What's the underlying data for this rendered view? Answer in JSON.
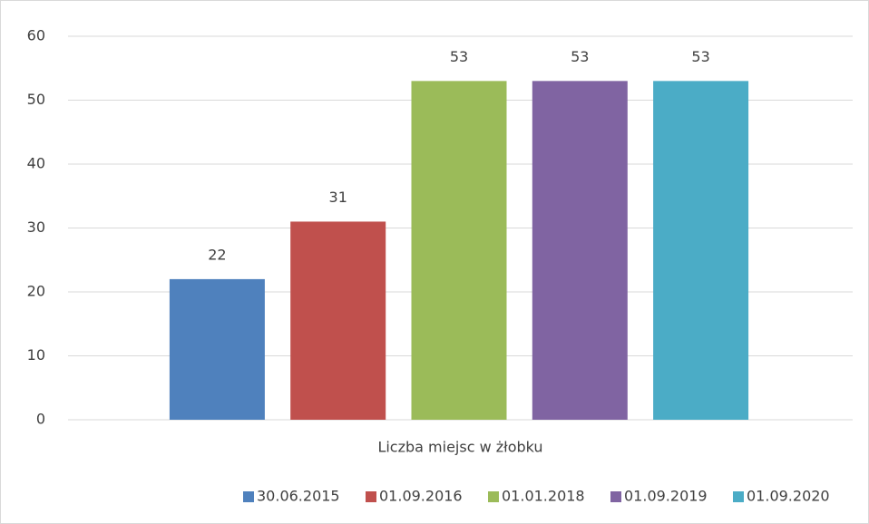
{
  "chart_data": {
    "type": "bar",
    "categories": [
      "Liczba miejsc w żłobku"
    ],
    "series": [
      {
        "name": "30.06.2015",
        "color": "#4f81bd",
        "values": [
          22
        ]
      },
      {
        "name": "01.09.2016",
        "color": "#c0504d",
        "values": [
          31
        ]
      },
      {
        "name": "01.01.2018",
        "color": "#9bbb59",
        "values": [
          53
        ]
      },
      {
        "name": "01.09.2019",
        "color": "#8064a2",
        "values": [
          53
        ]
      },
      {
        "name": "01.09.2020",
        "color": "#4bacc6",
        "values": [
          53
        ]
      }
    ],
    "ylim": [
      0,
      60
    ],
    "yticks": [
      0,
      10,
      20,
      30,
      40,
      50,
      60
    ],
    "grid": true,
    "legend": "bottom"
  }
}
